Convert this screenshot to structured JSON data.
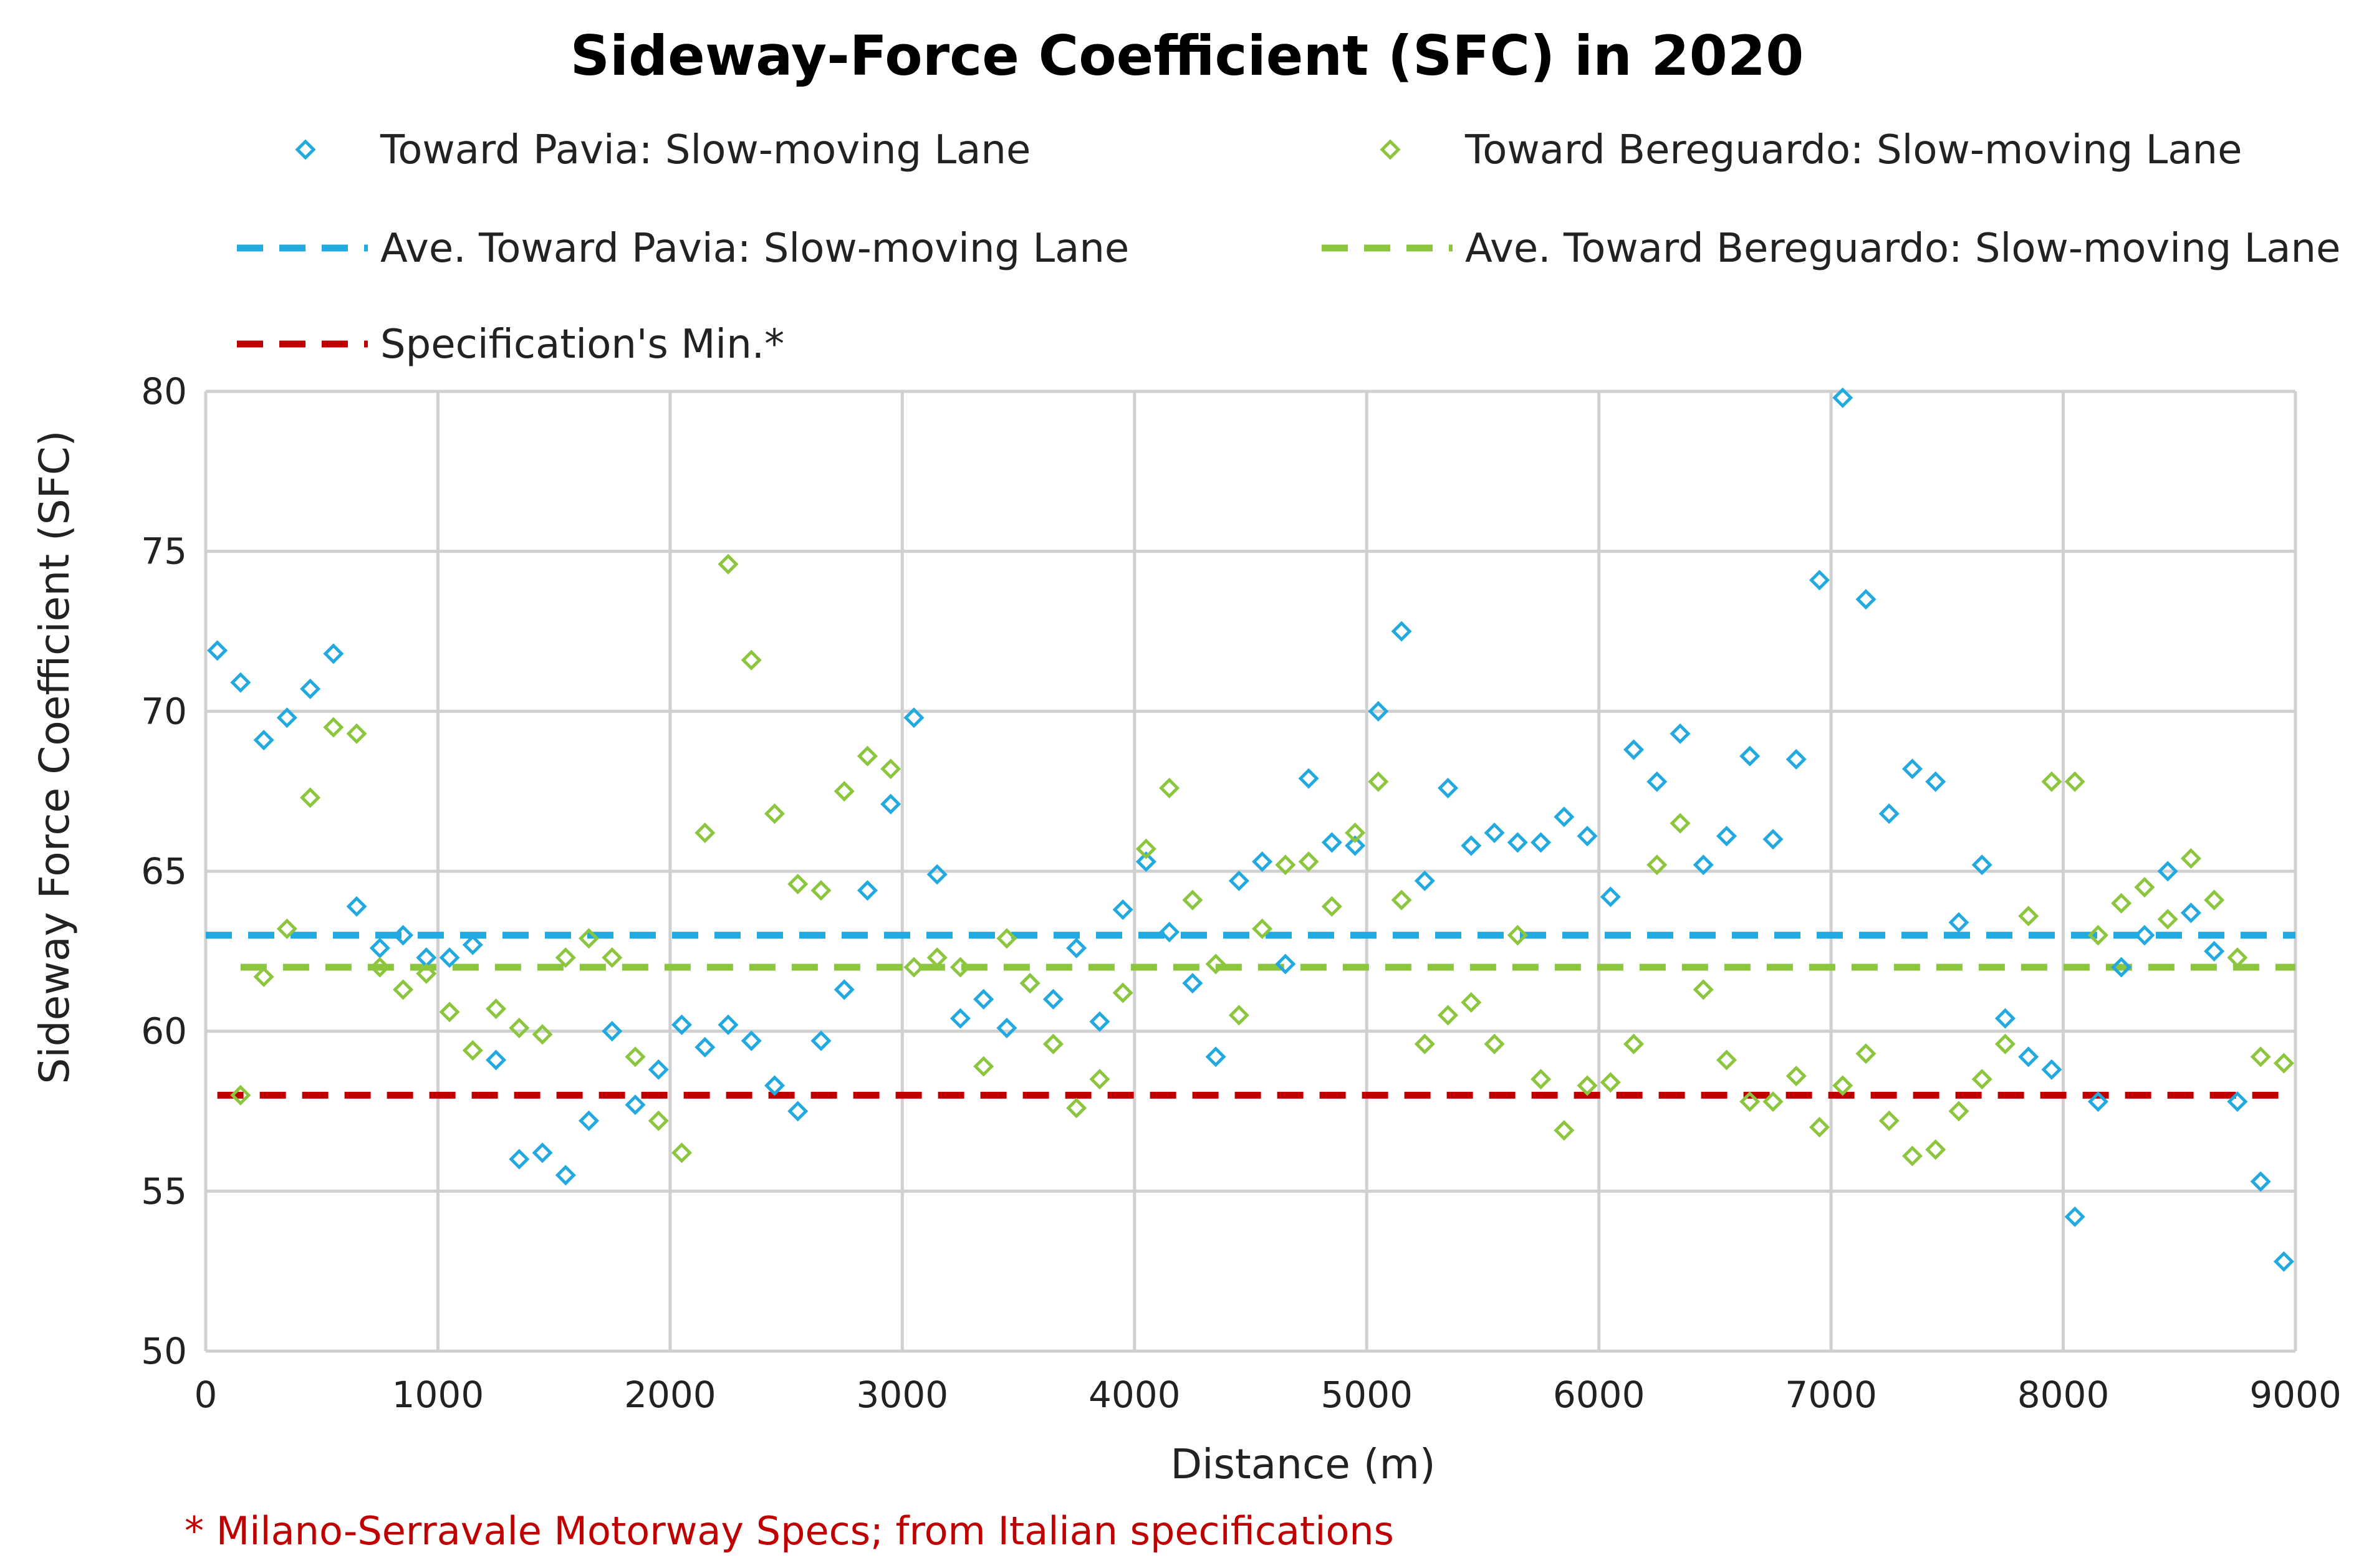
{
  "chart_data": {
    "type": "scatter",
    "title": "Sideway-Force Coefficient (SFC) in 2020",
    "xlabel": "Distance (m)",
    "ylabel": "Sideway Force Coefficient (SFC)",
    "xlim": [
      0,
      9000
    ],
    "ylim": [
      50,
      80
    ],
    "x_ticks": [
      0,
      1000,
      2000,
      3000,
      4000,
      5000,
      6000,
      7000,
      8000,
      9000
    ],
    "y_ticks": [
      50,
      55,
      60,
      65,
      70,
      75,
      80
    ],
    "grid": true,
    "legend_placement": "top",
    "footnote": "* Milano-Serravale Motorway Specs; from Italian specifications",
    "series": [
      {
        "name": "Toward Pavia: Slow-moving Lane",
        "kind": "scatter",
        "marker": "diamond",
        "color": "#21a9e0",
        "x": [
          50,
          150,
          250,
          350,
          450,
          550,
          650,
          750,
          850,
          950,
          1050,
          1150,
          1250,
          1350,
          1450,
          1550,
          1650,
          1750,
          1850,
          1950,
          2050,
          2150,
          2250,
          2350,
          2450,
          2550,
          2650,
          2750,
          2850,
          2950,
          3050,
          3150,
          3250,
          3350,
          3450,
          3550,
          3650,
          3750,
          3850,
          3950,
          4050,
          4150,
          4250,
          4350,
          4450,
          4550,
          4650,
          4750,
          4850,
          4950,
          5050,
          5150,
          5250,
          5350,
          5450,
          5550,
          5650,
          5750,
          5850,
          5950,
          6050,
          6150,
          6250,
          6350,
          6450,
          6550,
          6650,
          6750,
          6850,
          6950,
          7050,
          7150,
          7250,
          7350,
          7450,
          7550,
          7650,
          7750,
          7850,
          7950,
          8050,
          8150,
          8250,
          8350,
          8450,
          8550,
          8650,
          8750,
          8850,
          8950
        ],
        "y": [
          71.9,
          70.9,
          69.1,
          69.8,
          70.7,
          71.8,
          63.9,
          62.6,
          63,
          62.3,
          62.3,
          62.7,
          59.1,
          56,
          56.2,
          55.5,
          57.2,
          60,
          57.7,
          58.8,
          60.2,
          59.5,
          60.2,
          59.7,
          58.3,
          57.5,
          59.7,
          61.3,
          64.4,
          67.1,
          69.8,
          64.9,
          60.4,
          61,
          60.1,
          61.5,
          61,
          62.6,
          60.3,
          63.8,
          65.3,
          63.1,
          61.5,
          59.2,
          64.7,
          65.3,
          62.1,
          67.9,
          65.9,
          65.8,
          70,
          72.5,
          64.7,
          67.6,
          65.8,
          66.2,
          65.9,
          65.9,
          66.7,
          66.1,
          64.2,
          68.8,
          67.8,
          69.3,
          65.2,
          66.1,
          68.6,
          66,
          68.5,
          74.1,
          79.8,
          73.5,
          66.8,
          68.2,
          67.8,
          63.4,
          65.2,
          60.4,
          59.2,
          58.8,
          54.2,
          57.8,
          62,
          63,
          65,
          63.7,
          62.5,
          57.8,
          55.3,
          52.8
        ]
      },
      {
        "name": "Toward Bereguardo: Slow-moving Lane",
        "kind": "scatter",
        "marker": "diamond",
        "color": "#8cc63f",
        "x": [
          150,
          250,
          350,
          450,
          550,
          650,
          750,
          850,
          950,
          1050,
          1150,
          1250,
          1350,
          1450,
          1550,
          1650,
          1750,
          1850,
          1950,
          2050,
          2150,
          2250,
          2350,
          2450,
          2550,
          2650,
          2750,
          2850,
          2950,
          3050,
          3150,
          3250,
          3350,
          3450,
          3550,
          3650,
          3750,
          3850,
          3950,
          4050,
          4150,
          4250,
          4350,
          4450,
          4550,
          4650,
          4750,
          4850,
          4950,
          5050,
          5150,
          5250,
          5350,
          5450,
          5550,
          5650,
          5750,
          5850,
          5950,
          6050,
          6150,
          6250,
          6350,
          6450,
          6550,
          6650,
          6750,
          6850,
          6950,
          7050,
          7150,
          7250,
          7350,
          7450,
          7550,
          7650,
          7750,
          7850,
          7950,
          8050,
          8150,
          8250,
          8350,
          8450,
          8550,
          8650,
          8750,
          8850,
          8950
        ],
        "y": [
          58,
          61.7,
          63.2,
          67.3,
          69.5,
          69.3,
          62,
          61.3,
          61.8,
          60.6,
          59.4,
          60.7,
          60.1,
          59.9,
          62.3,
          62.9,
          62.3,
          59.2,
          57.2,
          56.2,
          66.2,
          74.6,
          71.6,
          66.8,
          64.6,
          64.4,
          67.5,
          68.6,
          68.2,
          62,
          62.3,
          62,
          58.9,
          62.9,
          61.5,
          59.6,
          57.6,
          58.5,
          61.2,
          65.7,
          67.6,
          64.1,
          62.1,
          60.5,
          63.2,
          65.2,
          65.3,
          63.9,
          66.2,
          67.8,
          64.1,
          59.6,
          60.5,
          60.9,
          59.6,
          63,
          58.5,
          56.9,
          58.3,
          58.4,
          59.6,
          65.2,
          66.5,
          61.3,
          59.1,
          57.8,
          57.8,
          58.6,
          57,
          58.3,
          59.3,
          57.2,
          56.1,
          56.3,
          57.5,
          58.5,
          59.6,
          63.6,
          67.8,
          67.8,
          63,
          64,
          64.5,
          63.5,
          65.4,
          64.1,
          62.3,
          59.2,
          59
        ]
      },
      {
        "name": "Ave. Toward Pavia: Slow-moving Lane",
        "kind": "line",
        "dash": "dashed",
        "color": "#21a9e0",
        "x": [
          0,
          9000
        ],
        "y": [
          63,
          63
        ]
      },
      {
        "name": "Ave. Toward Bereguardo: Slow-moving Lane",
        "kind": "line",
        "dash": "dashed",
        "color": "#8cc63f",
        "x": [
          150,
          9000
        ],
        "y": [
          62,
          62
        ]
      },
      {
        "name": "Specification's Min.*",
        "kind": "line",
        "dash": "dashed",
        "color": "#c00000",
        "x": [
          50,
          8950
        ],
        "y": [
          58,
          58
        ]
      }
    ]
  }
}
